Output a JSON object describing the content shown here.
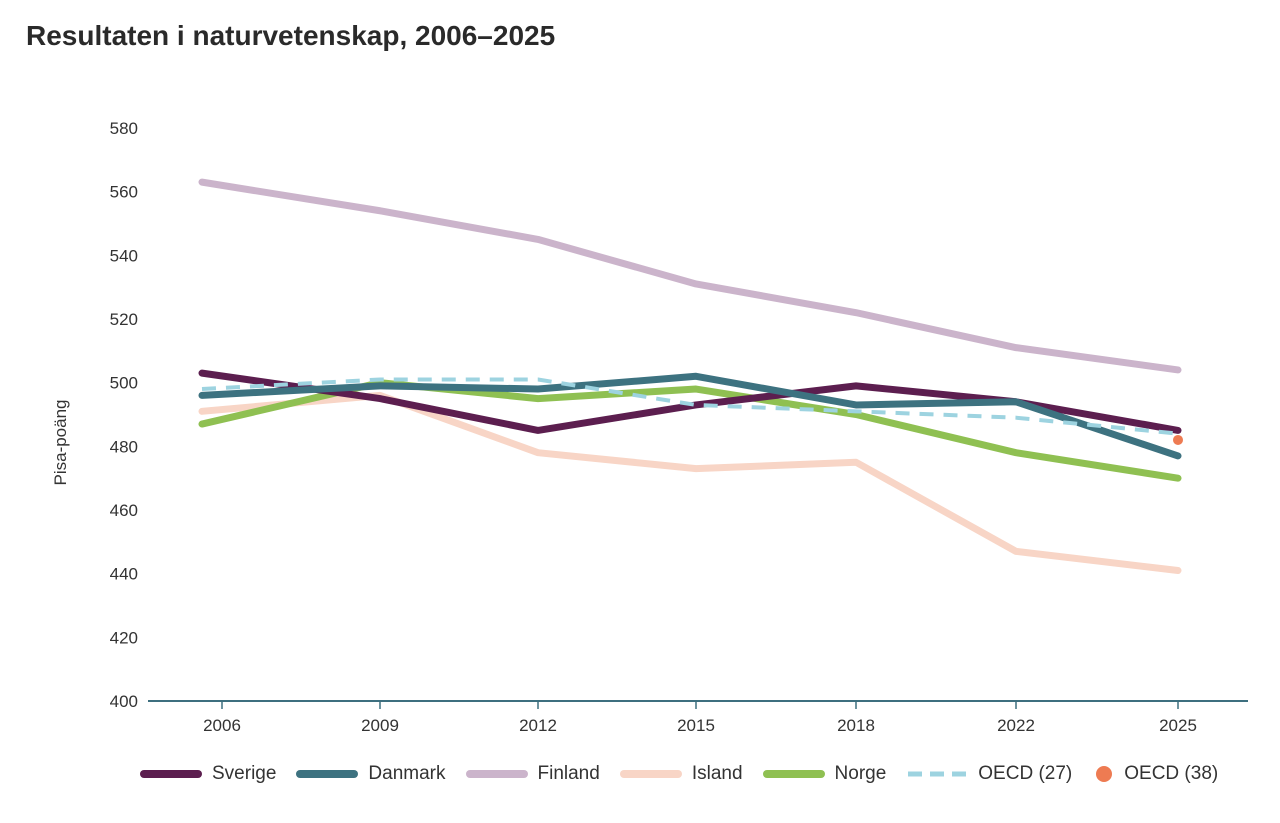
{
  "title": "Resultaten i naturvetenskap, 2006–2025",
  "chart_data": {
    "type": "line",
    "title": "Resultaten i naturvetenskap, 2006–2025",
    "xlabel": "",
    "ylabel": "Pisa-poäng",
    "categories": [
      "2006",
      "2009",
      "2012",
      "2015",
      "2018",
      "2022",
      "2025"
    ],
    "ylim": [
      400,
      580
    ],
    "yticks": [
      400,
      420,
      440,
      460,
      480,
      500,
      520,
      540,
      560,
      580
    ],
    "grid": false,
    "legend_position": "bottom",
    "series": [
      {
        "name": "Sverige",
        "color": "#5c1e4f",
        "style": "solid",
        "values": [
          503,
          495,
          485,
          493,
          499,
          494,
          485
        ]
      },
      {
        "name": "Danmark",
        "color": "#3d7280",
        "style": "solid",
        "values": [
          496,
          499,
          498,
          502,
          493,
          494,
          477
        ]
      },
      {
        "name": "Finland",
        "color": "#cbb4cb",
        "style": "solid",
        "values": [
          563,
          554,
          545,
          531,
          522,
          511,
          504
        ]
      },
      {
        "name": "Island",
        "color": "#f8d5c6",
        "style": "solid",
        "values": [
          491,
          496,
          478,
          473,
          475,
          447,
          441
        ]
      },
      {
        "name": "Norge",
        "color": "#8fc052",
        "style": "solid",
        "values": [
          487,
          500,
          495,
          498,
          490,
          478,
          470
        ]
      },
      {
        "name": "OECD (27)",
        "color": "#9dd3e0",
        "style": "dashed",
        "values": [
          498,
          501,
          501,
          493,
          491,
          489,
          484
        ]
      },
      {
        "name": "OECD (38)",
        "color": "#ee7b52",
        "style": "point",
        "values": [
          null,
          null,
          null,
          null,
          null,
          null,
          482
        ]
      }
    ]
  }
}
